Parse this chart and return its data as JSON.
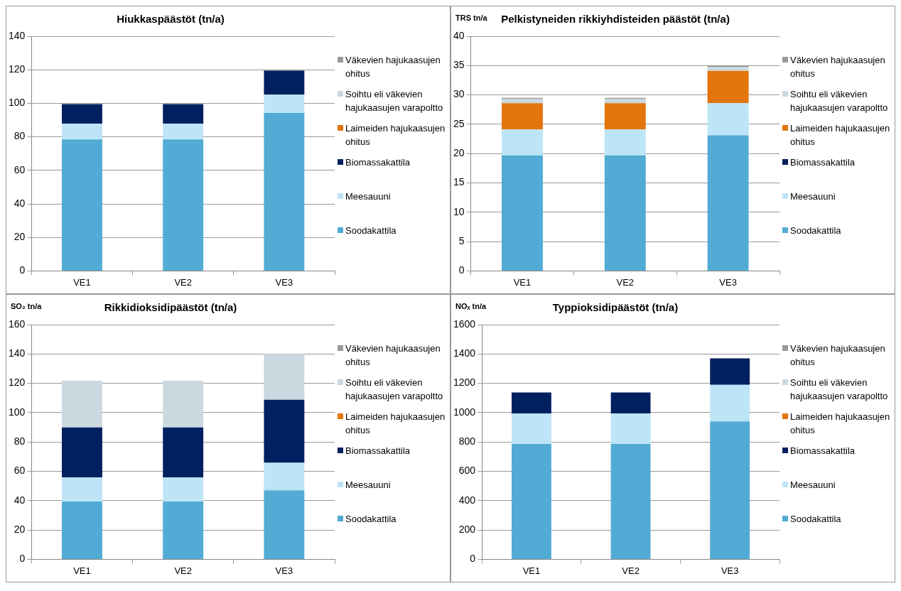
{
  "chart_data": [
    {
      "type": "bar",
      "title": "Hiukkaspäästöt (tn/a)",
      "categories": [
        "VE1",
        "VE2",
        "VE3"
      ],
      "stacked": true,
      "ylim": [
        0,
        140
      ],
      "yticks": [
        0,
        20,
        40,
        60,
        80,
        100,
        120,
        140
      ],
      "grid": "y",
      "legend": "right",
      "series": [
        {
          "name": "Soodakattila",
          "color": "#52abd4",
          "values": [
            78.5,
            78.5,
            94.2
          ]
        },
        {
          "name": "Meesauuni",
          "color": "#bde5f7",
          "values": [
            9.4,
            9.4,
            10.9
          ]
        },
        {
          "name": "Biomassakattila",
          "color": "#002060",
          "values": [
            11.5,
            11.5,
            14.3
          ]
        },
        {
          "name": "Laimeiden hajukaasujen ohitus",
          "color": "#e2750c",
          "values": [
            0,
            0,
            0
          ]
        },
        {
          "name": "Soihtu eli väkevien hajukaasujen varapoltto",
          "color": "#ccd8e0",
          "values": [
            0,
            0,
            0
          ]
        },
        {
          "name": "Väkevien hajukaasujen ohitus",
          "color": "#999999",
          "values": [
            0.3,
            0.3,
            0.4
          ]
        }
      ]
    },
    {
      "type": "bar",
      "title": "Pelkistyneiden rikkiyhdisteiden päästöt (tn/a)",
      "ylabel": "TRS tn/a",
      "categories": [
        "VE1",
        "VE2",
        "VE3"
      ],
      "stacked": true,
      "ylim": [
        0,
        40
      ],
      "yticks": [
        0,
        5,
        10,
        15,
        20,
        25,
        30,
        35,
        40
      ],
      "grid": "y",
      "legend": "right",
      "series": [
        {
          "name": "Soodakattila",
          "color": "#52abd4",
          "values": [
            19.7,
            19.7,
            23.1
          ]
        },
        {
          "name": "Meesauuni",
          "color": "#bde5f7",
          "values": [
            4.4,
            4.4,
            5.5
          ]
        },
        {
          "name": "Biomassakattila",
          "color": "#002060",
          "values": [
            0,
            0,
            0
          ]
        },
        {
          "name": "Laimeiden hajukaasujen ohitus",
          "color": "#e2750c",
          "values": [
            4.5,
            4.5,
            5.5
          ]
        },
        {
          "name": "Soihtu eli väkevien hajukaasujen varapoltto",
          "color": "#ccd8e0",
          "values": [
            0.7,
            0.7,
            0.7
          ]
        },
        {
          "name": "Väkevien hajukaasujen ohitus",
          "color": "#999999",
          "values": [
            0.2,
            0.2,
            0.2
          ]
        }
      ]
    },
    {
      "type": "bar",
      "title": "Rikkidioksidipäästöt (tn/a)",
      "ylabel": "SO₂ tn/a",
      "categories": [
        "VE1",
        "VE2",
        "VE3"
      ],
      "stacked": true,
      "ylim": [
        0,
        160
      ],
      "yticks": [
        0,
        20,
        40,
        60,
        80,
        100,
        120,
        140,
        160
      ],
      "grid": "y",
      "legend": "right",
      "series": [
        {
          "name": "Soodakattila",
          "color": "#52abd4",
          "values": [
            39.4,
            39.4,
            47.1
          ]
        },
        {
          "name": "Meesauuni",
          "color": "#bde5f7",
          "values": [
            16.5,
            16.5,
            18.7
          ]
        },
        {
          "name": "Biomassakattila",
          "color": "#002060",
          "values": [
            34,
            34,
            43
          ]
        },
        {
          "name": "Laimeiden hajukaasujen ohitus",
          "color": "#e2750c",
          "values": [
            0,
            0,
            0
          ]
        },
        {
          "name": "Soihtu eli väkevien hajukaasujen varapoltto",
          "color": "#ccd8e0",
          "values": [
            31.9,
            31.9,
            31.6
          ]
        },
        {
          "name": "Väkevien hajukaasujen ohitus",
          "color": "#999999",
          "values": [
            0,
            0,
            0
          ]
        }
      ]
    },
    {
      "type": "bar",
      "title": "Typpioksidipäästöt (tn/a)",
      "ylabel": "NOₓ tn/a",
      "categories": [
        "VE1",
        "VE2",
        "VE3"
      ],
      "stacked": true,
      "ylim": [
        0,
        1600
      ],
      "yticks": [
        0,
        200,
        400,
        600,
        800,
        1000,
        1200,
        1400,
        1600
      ],
      "grid": "y",
      "legend": "right",
      "series": [
        {
          "name": "Soodakattila",
          "color": "#52abd4",
          "values": [
            787,
            787,
            940
          ]
        },
        {
          "name": "Meesauuni",
          "color": "#bde5f7",
          "values": [
            208,
            208,
            249
          ]
        },
        {
          "name": "Biomassakattila",
          "color": "#002060",
          "values": [
            142,
            142,
            181
          ]
        },
        {
          "name": "Laimeiden hajukaasujen ohitus",
          "color": "#e2750c",
          "values": [
            0,
            0,
            0
          ]
        },
        {
          "name": "Soihtu eli väkevien hajukaasujen varapoltto",
          "color": "#ccd8e0",
          "values": [
            0,
            0,
            0
          ]
        },
        {
          "name": "Väkevien hajukaasujen ohitus",
          "color": "#999999",
          "values": [
            0,
            0,
            0
          ]
        }
      ]
    }
  ]
}
